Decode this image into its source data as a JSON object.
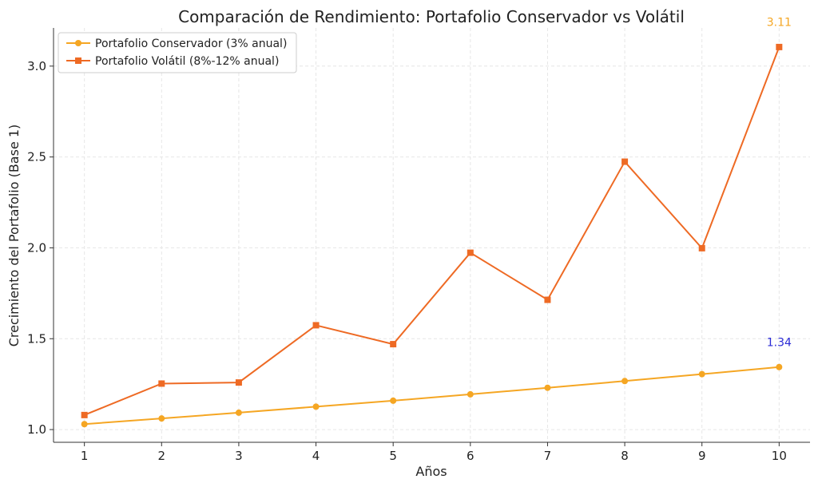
{
  "chart_data": {
    "type": "line",
    "title": "Comparación de Rendimiento: Portafolio Conservador vs Volátil",
    "xlabel": "Años",
    "ylabel": "Crecimiento del Portafolio (Base 1)",
    "x": [
      1,
      2,
      3,
      4,
      5,
      6,
      7,
      8,
      9,
      10
    ],
    "xticks": [
      "1",
      "2",
      "3",
      "4",
      "5",
      "6",
      "7",
      "8",
      "9",
      "10"
    ],
    "yticks": [
      "1.0",
      "1.5",
      "2.0",
      "2.5",
      "3.0"
    ],
    "ylim": [
      0.93,
      3.21
    ],
    "xlim": [
      0.6,
      10.4
    ],
    "grid": true,
    "legend_position": "top-left",
    "series": [
      {
        "name": "Portafolio Conservador (3% anual)",
        "color": "#f5a623",
        "marker": "circle",
        "values": [
          1.03,
          1.061,
          1.093,
          1.126,
          1.159,
          1.194,
          1.23,
          1.267,
          1.305,
          1.344
        ]
      },
      {
        "name": "Portafolio Volátil (8%-12% anual)",
        "color": "#ee6a24",
        "marker": "square",
        "values": [
          1.08,
          1.253,
          1.259,
          1.574,
          1.47,
          1.973,
          1.714,
          2.474,
          1.998,
          3.105
        ]
      }
    ],
    "annotations": [
      {
        "text": "3.11",
        "x": 10,
        "y": 3.22,
        "color": "#f5a623"
      },
      {
        "text": "1.34",
        "x": 10,
        "y": 1.46,
        "color": "#2b2bd6"
      }
    ]
  }
}
